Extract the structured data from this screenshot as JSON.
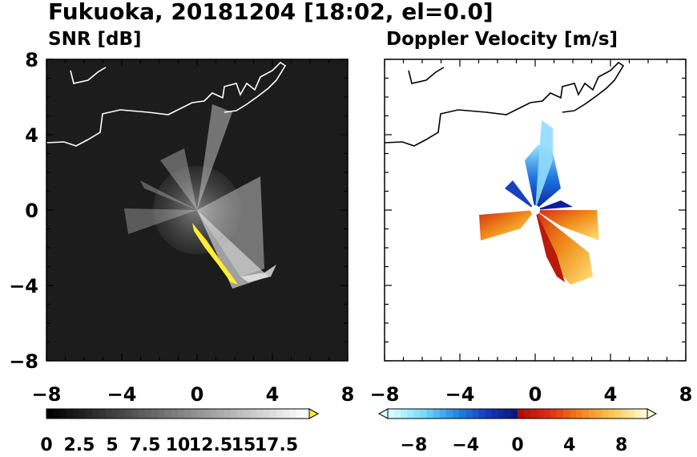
{
  "title": "Fukuoka, 20181204 [18:02, el=0.0]",
  "colors": {
    "snr_background": "#1a1a1a",
    "snr_highlight": "#ffee33",
    "coast_on_dark": "#ffffff",
    "coast_on_light": "#000000",
    "doppler_negative": "#1e5bd8",
    "doppler_positive": "#f08c1e"
  },
  "chart_data": [
    {
      "type": "heatmap",
      "title": "SNR [dB]",
      "xlabel": "",
      "ylabel": "",
      "xlim": [
        -8,
        8
      ],
      "ylim": [
        -8,
        8
      ],
      "xticks": [
        "−8",
        "−4",
        "0",
        "4",
        "8"
      ],
      "yticks": [
        "8",
        "4",
        "0",
        "−4",
        "−8"
      ],
      "colorbar": {
        "min": 0,
        "max": 20,
        "extend": "max",
        "tick_labels": [
          "0",
          "2.5",
          "5",
          "7.5",
          "10",
          "12.5",
          "15",
          "17.5"
        ],
        "tick_values": [
          0,
          2.5,
          5,
          7.5,
          10,
          12.5,
          15,
          17.5
        ],
        "colormap": "black-to-white, yellow for values above max"
      }
    },
    {
      "type": "heatmap",
      "title": "Doppler Velocity [m/s]",
      "xlabel": "",
      "ylabel": "",
      "xlim": [
        -8,
        8
      ],
      "ylim": [
        -8,
        8
      ],
      "xticks": [
        "−8",
        "−4",
        "0",
        "4",
        "8"
      ],
      "yticks": [
        "8",
        "4",
        "0",
        "−4",
        "−8"
      ],
      "colorbar": {
        "min": -10,
        "max": 10,
        "extend": "both",
        "tick_labels": [
          "−8",
          "−4",
          "0",
          "4",
          "8"
        ],
        "tick_values": [
          -8,
          -4,
          0,
          4,
          8
        ],
        "colormap": "light cyan to dark blue (negative), red to pale yellow (positive)"
      }
    }
  ]
}
